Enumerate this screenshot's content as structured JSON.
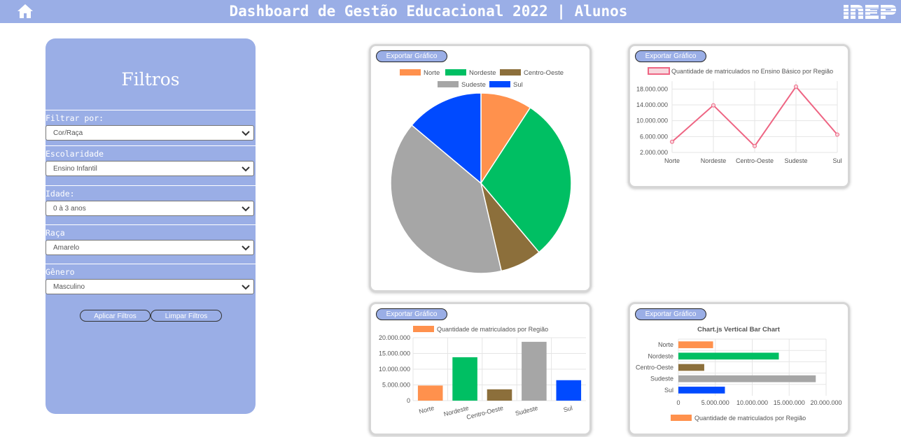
{
  "header": {
    "title": "Dashboard de Gestão Educacional 2022 | Alunos",
    "logo_text": "INEP",
    "home_icon": "home-icon",
    "background": "#9aaee6"
  },
  "filters": {
    "title": "Filtros",
    "groups": [
      {
        "label": "Filtrar por:",
        "value": "Cor/Raça"
      },
      {
        "label": "Escolaridade",
        "value": "Ensino Infantil"
      },
      {
        "label": "Idade:",
        "value": "0 à 3 anos"
      },
      {
        "label": "Raça",
        "value": "Amarelo"
      },
      {
        "label": "Gênero",
        "value": "Masculino"
      }
    ],
    "apply_label": "Aplicar Filtros",
    "clear_label": "Limpar Filtros"
  },
  "export_label": "Exportar Gráfico",
  "colors": {
    "Norte": "#ff914d",
    "Nordeste": "#00bf63",
    "Centro-Oeste": "#8c6f3b",
    "Sudeste": "#a6a6a6",
    "Sul": "#004aff",
    "line": "#ee6583"
  },
  "chart_data": [
    {
      "type": "pie",
      "categories": [
        "Norte",
        "Nordeste",
        "Centro-Oeste",
        "Sudeste",
        "Sul"
      ],
      "values": [
        4300000,
        13900000,
        3500000,
        18600000,
        6500000
      ],
      "legend": [
        "Norte",
        "Nordeste",
        "Centro-Oeste",
        "Sudeste",
        "Sul"
      ],
      "legend_position": "top"
    },
    {
      "type": "line",
      "categories": [
        "Norte",
        "Nordeste",
        "Centro-Oeste",
        "Sudeste",
        "Sul"
      ],
      "series": [
        {
          "name": "Quantidade de matriculados no Ensino Básico por Região",
          "values": [
            4700000,
            13900000,
            3600000,
            18600000,
            6500000
          ]
        }
      ],
      "ylim": [
        2000000,
        20000000
      ],
      "yticks": [
        "2.000.000",
        "6.000.000",
        "10.000.000",
        "14.000.000",
        "18.000.000"
      ],
      "yticks_values": [
        2000000,
        6000000,
        10000000,
        14000000,
        18000000
      ],
      "grid": true
    },
    {
      "type": "bar",
      "categories": [
        "Norte",
        "Nordeste",
        "Centro-Oeste",
        "Sudeste",
        "Sul"
      ],
      "series": [
        {
          "name": "Quantidade de matriculados por Região",
          "values": [
            4800000,
            13800000,
            3600000,
            18700000,
            6500000
          ]
        }
      ],
      "ylim": [
        0,
        20000000
      ],
      "yticks": [
        "0",
        "5.000.000",
        "10.000.000",
        "15.000.000",
        "20.000.000"
      ],
      "yticks_values": [
        0,
        5000000,
        10000000,
        15000000,
        20000000
      ],
      "grid": true
    },
    {
      "type": "bar",
      "orientation": "horizontal",
      "title": "Chart.js Vertical Bar Chart",
      "categories": [
        "Norte",
        "Nordeste",
        "Centro-Oeste",
        "Sudeste",
        "Sul"
      ],
      "series": [
        {
          "name": "Quantidade de matriculados por Região",
          "values": [
            4700000,
            13600000,
            3500000,
            18600000,
            6300000
          ]
        }
      ],
      "xlim": [
        0,
        20000000
      ],
      "xticks": [
        "0",
        "5.000.000",
        "10.000.000",
        "15.000.000",
        "20.000.000"
      ],
      "xticks_values": [
        0,
        5000000,
        10000000,
        15000000,
        20000000
      ],
      "grid": true
    }
  ]
}
